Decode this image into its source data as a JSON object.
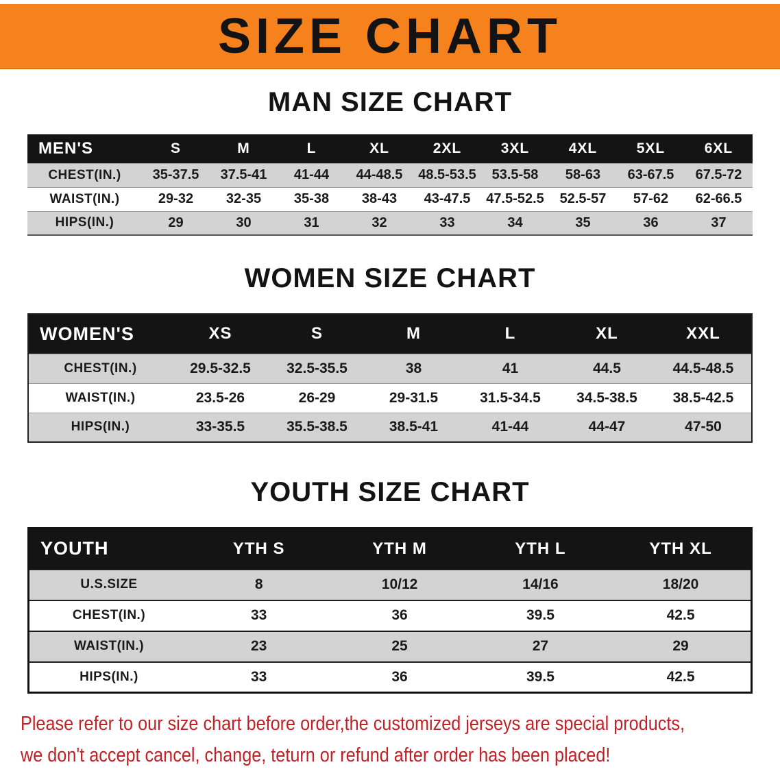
{
  "colors": {
    "banner-orange": "#F6821E",
    "header-black": "#141414",
    "row-gray": "#D3D3D3",
    "disclaimer-red": "#C02126",
    "text-black": "#111111"
  },
  "banner": {
    "title": "SIZE CHART"
  },
  "sections": [
    {
      "id": "men",
      "heading": "MAN SIZE CHART",
      "table": {
        "header": [
          "MEN'S",
          "S",
          "M",
          "L",
          "XL",
          "2XL",
          "3XL",
          "4XL",
          "5XL",
          "6XL"
        ],
        "rows": [
          [
            "CHEST(IN.)",
            "35-37.5",
            "37.5-41",
            "41-44",
            "44-48.5",
            "48.5-53.5",
            "53.5-58",
            "58-63",
            "63-67.5",
            "67.5-72"
          ],
          [
            "WAIST(IN.)",
            "29-32",
            "32-35",
            "35-38",
            "38-43",
            "43-47.5",
            "47.5-52.5",
            "52.5-57",
            "57-62",
            "62-66.5"
          ],
          [
            "HIPS(IN.)",
            "29",
            "30",
            "31",
            "32",
            "33",
            "34",
            "35",
            "36",
            "37"
          ]
        ]
      }
    },
    {
      "id": "women",
      "heading": "WOMEN SIZE CHART",
      "table": {
        "header": [
          "WOMEN'S",
          "XS",
          "S",
          "M",
          "L",
          "XL",
          "XXL"
        ],
        "rows": [
          [
            "CHEST(IN.)",
            "29.5-32.5",
            "32.5-35.5",
            "38",
            "41",
            "44.5",
            "44.5-48.5"
          ],
          [
            "WAIST(IN.)",
            "23.5-26",
            "26-29",
            "29-31.5",
            "31.5-34.5",
            "34.5-38.5",
            "38.5-42.5"
          ],
          [
            "HIPS(IN.)",
            "33-35.5",
            "35.5-38.5",
            "38.5-41",
            "41-44",
            "44-47",
            "47-50"
          ]
        ]
      }
    },
    {
      "id": "youth",
      "heading": "YOUTH SIZE CHART",
      "table": {
        "header": [
          "YOUTH",
          "YTH S",
          "YTH M",
          "YTH L",
          "YTH XL"
        ],
        "rows": [
          [
            "U.S.SIZE",
            "8",
            "10/12",
            "14/16",
            "18/20"
          ],
          [
            "CHEST(IN.)",
            "33",
            "36",
            "39.5",
            "42.5"
          ],
          [
            "WAIST(IN.)",
            "23",
            "25",
            "27",
            "29"
          ],
          [
            "HIPS(IN.)",
            "33",
            "36",
            "39.5",
            "42.5"
          ]
        ]
      }
    }
  ],
  "disclaimer": {
    "line1": "Please refer to our size chart before order,the customized jerseys are special products,",
    "line2": "we don't accept cancel, change, teturn or refund after order has been placed!"
  }
}
